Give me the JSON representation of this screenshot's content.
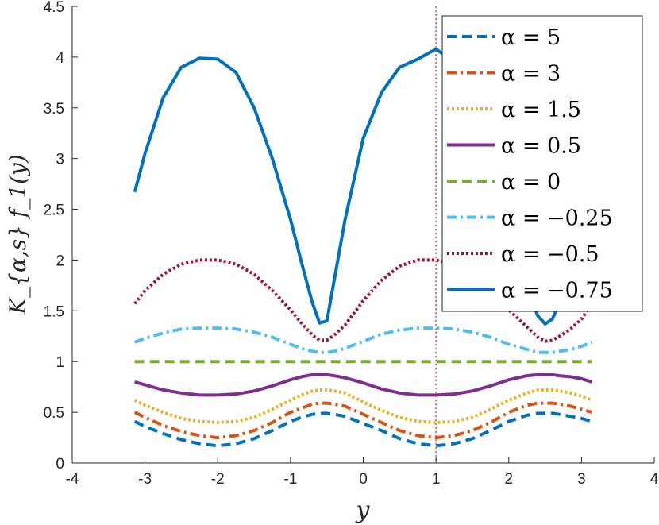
{
  "chart_data": {
    "type": "line",
    "title": "",
    "xlabel": "y",
    "ylabel": "K_{α,s} f_1(y)",
    "xlim": [
      -4,
      4
    ],
    "ylim": [
      0,
      4.5
    ],
    "xticks": [
      "-4",
      "-3",
      "-2",
      "-1",
      "0",
      "1",
      "2",
      "3",
      "4"
    ],
    "yticks": [
      "0",
      "0.5",
      "1",
      "1.5",
      "2",
      "2.5",
      "3",
      "3.5",
      "4",
      "4.5"
    ],
    "grid": false,
    "legend_position": "top-right",
    "vline": {
      "x": 1,
      "color": "#E8403A"
    },
    "x": [
      -3.1416,
      -3.0,
      -2.75,
      -2.5,
      -2.25,
      -2.0,
      -1.75,
      -1.5,
      -1.25,
      -1.0,
      -0.85,
      -0.7,
      -0.6,
      -0.5,
      -0.4,
      -0.25,
      0.0,
      0.25,
      0.5,
      0.75,
      1.0,
      1.25,
      1.5,
      1.75,
      2.0,
      2.25,
      2.4,
      2.5,
      2.6,
      2.7,
      2.85,
      3.0,
      3.1416
    ],
    "series": [
      {
        "name": "α = 5",
        "color": "#0072BD",
        "dash": "dashed",
        "values": [
          0.41,
          0.36,
          0.29,
          0.23,
          0.19,
          0.17,
          0.19,
          0.24,
          0.32,
          0.41,
          0.45,
          0.48,
          0.49,
          0.49,
          0.48,
          0.46,
          0.39,
          0.32,
          0.24,
          0.19,
          0.17,
          0.19,
          0.24,
          0.32,
          0.41,
          0.47,
          0.49,
          0.49,
          0.49,
          0.48,
          0.46,
          0.44,
          0.41
        ]
      },
      {
        "name": "α = 3",
        "color": "#D95319",
        "dash": "dashdot",
        "values": [
          0.5,
          0.45,
          0.37,
          0.31,
          0.27,
          0.25,
          0.27,
          0.32,
          0.4,
          0.5,
          0.54,
          0.58,
          0.59,
          0.59,
          0.58,
          0.56,
          0.48,
          0.4,
          0.32,
          0.27,
          0.25,
          0.27,
          0.32,
          0.4,
          0.5,
          0.57,
          0.59,
          0.59,
          0.59,
          0.58,
          0.56,
          0.53,
          0.5
        ]
      },
      {
        "name": "α = 1.5",
        "color": "#EDB120",
        "dash": "dotted",
        "values": [
          0.62,
          0.57,
          0.5,
          0.44,
          0.41,
          0.4,
          0.41,
          0.45,
          0.53,
          0.62,
          0.67,
          0.71,
          0.72,
          0.72,
          0.71,
          0.69,
          0.6,
          0.52,
          0.45,
          0.41,
          0.4,
          0.41,
          0.45,
          0.53,
          0.62,
          0.69,
          0.72,
          0.72,
          0.72,
          0.71,
          0.69,
          0.66,
          0.62
        ]
      },
      {
        "name": "α = 0.5",
        "color": "#7E2F8E",
        "dash": "solid",
        "values": [
          0.8,
          0.77,
          0.72,
          0.69,
          0.67,
          0.67,
          0.68,
          0.71,
          0.76,
          0.82,
          0.85,
          0.87,
          0.87,
          0.87,
          0.86,
          0.84,
          0.79,
          0.73,
          0.69,
          0.67,
          0.67,
          0.68,
          0.71,
          0.76,
          0.82,
          0.86,
          0.87,
          0.87,
          0.87,
          0.86,
          0.85,
          0.83,
          0.8
        ]
      },
      {
        "name": "α = 0",
        "color": "#77AC30",
        "dash": "dashed",
        "values": [
          1.0,
          1.0,
          1.0,
          1.0,
          1.0,
          1.0,
          1.0,
          1.0,
          1.0,
          1.0,
          1.0,
          1.0,
          1.0,
          1.0,
          1.0,
          1.0,
          1.0,
          1.0,
          1.0,
          1.0,
          1.0,
          1.0,
          1.0,
          1.0,
          1.0,
          1.0,
          1.0,
          1.0,
          1.0,
          1.0,
          1.0,
          1.0,
          1.0
        ]
      },
      {
        "name": "α = −0.25",
        "color": "#4DBEEE",
        "dash": "dashdot",
        "values": [
          1.19,
          1.23,
          1.28,
          1.32,
          1.33,
          1.33,
          1.32,
          1.29,
          1.24,
          1.17,
          1.13,
          1.1,
          1.09,
          1.09,
          1.1,
          1.13,
          1.2,
          1.27,
          1.31,
          1.33,
          1.33,
          1.32,
          1.29,
          1.24,
          1.17,
          1.12,
          1.09,
          1.09,
          1.09,
          1.1,
          1.12,
          1.15,
          1.19
        ]
      },
      {
        "name": "α = −0.5",
        "color": "#A2142F",
        "dash": "dotted",
        "values": [
          1.57,
          1.7,
          1.86,
          1.96,
          2.0,
          2.0,
          1.96,
          1.86,
          1.7,
          1.51,
          1.38,
          1.26,
          1.21,
          1.21,
          1.26,
          1.36,
          1.6,
          1.8,
          1.94,
          2.0,
          2.0,
          1.96,
          1.86,
          1.7,
          1.51,
          1.34,
          1.24,
          1.2,
          1.21,
          1.25,
          1.32,
          1.42,
          1.57
        ]
      },
      {
        "name": "α = −0.75",
        "color": "#0072BD",
        "dash": "solid",
        "values": [
          2.67,
          3.05,
          3.6,
          3.9,
          3.99,
          3.98,
          3.85,
          3.5,
          3.0,
          2.4,
          1.98,
          1.58,
          1.38,
          1.4,
          1.8,
          2.4,
          3.2,
          3.65,
          3.9,
          3.98,
          4.08,
          3.95,
          3.6,
          3.05,
          2.35,
          1.7,
          1.45,
          1.37,
          1.42,
          1.58,
          1.95,
          2.35,
          2.67
        ]
      }
    ]
  }
}
